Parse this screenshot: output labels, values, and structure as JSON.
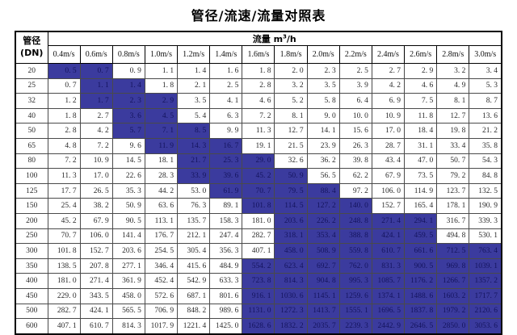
{
  "title": "管径/流速/流量对照表",
  "colors": {
    "highlight_bg": "#3b3b9e",
    "highlight_text": "#14145e",
    "outer_border": "#000000",
    "normal_text": "#2a2a2a"
  },
  "table": {
    "corner_header": {
      "line1": "管径",
      "line2": "(DN)"
    },
    "flow_header": {
      "label": "流量",
      "unit_prefix": "m",
      "unit_sup": "3",
      "unit_suffix": "/h"
    },
    "velocity_headers": [
      "0.4m/s",
      "0.6m/s",
      "0.8m/s",
      "1.0m/s",
      "1.2m/s",
      "1.4m/s",
      "1.6m/s",
      "1.8m/s",
      "2.0m/s",
      "2.2m/s",
      "2.4m/s",
      "2.6m/s",
      "2.8m/s",
      "3.0m/s"
    ],
    "rows": [
      {
        "dn": "20",
        "values": [
          "0. 5",
          "0. 7",
          "0. 9",
          "1. 1",
          "1. 4",
          "1. 6",
          "1. 8",
          "2. 0",
          "2. 3",
          "2. 5",
          "2. 7",
          "2. 9",
          "3. 2",
          "3. 4"
        ],
        "highlight": [
          0,
          1
        ]
      },
      {
        "dn": "25",
        "values": [
          "0. 7",
          "1. 1",
          "1. 4",
          "1. 8",
          "2. 1",
          "2. 5",
          "2. 8",
          "3. 2",
          "3. 5",
          "3. 9",
          "4. 2",
          "4. 6",
          "4. 9",
          "5. 3"
        ],
        "highlight": [
          1,
          2
        ]
      },
      {
        "dn": "32",
        "values": [
          "1. 2",
          "1. 7",
          "2. 3",
          "2. 9",
          "3. 5",
          "4. 1",
          "4. 6",
          "5. 2",
          "5. 8",
          "6. 4",
          "6. 9",
          "7. 5",
          "8. 1",
          "8. 7"
        ],
        "highlight": [
          1,
          2,
          3
        ]
      },
      {
        "dn": "40",
        "values": [
          "1. 8",
          "2. 7",
          "3. 6",
          "4. 5",
          "5. 4",
          "6. 3",
          "7. 2",
          "8. 1",
          "9. 0",
          "10. 0",
          "10. 9",
          "11. 8",
          "12. 7",
          "13. 6"
        ],
        "highlight": [
          2,
          3
        ]
      },
      {
        "dn": "50",
        "values": [
          "2. 8",
          "4. 2",
          "5. 7",
          "7. 1",
          "8. 5",
          "9. 9",
          "11. 3",
          "12. 7",
          "14. 1",
          "15. 6",
          "17. 0",
          "18. 4",
          "19. 8",
          "21. 2"
        ],
        "highlight": [
          2,
          3,
          4
        ]
      },
      {
        "dn": "65",
        "values": [
          "4. 8",
          "7. 2",
          "9. 6",
          "11. 9",
          "14. 3",
          "16. 7",
          "19. 1",
          "21. 5",
          "23. 9",
          "26. 3",
          "28. 7",
          "31. 1",
          "33. 4",
          "35. 8"
        ],
        "highlight": [
          3,
          4,
          5
        ]
      },
      {
        "dn": "80",
        "values": [
          "7. 2",
          "10. 9",
          "14. 5",
          "18. 1",
          "21. 7",
          "25. 3",
          "29. 0",
          "32. 6",
          "36. 2",
          "39. 8",
          "43. 4",
          "47. 0",
          "50. 7",
          "54. 3"
        ],
        "highlight": [
          4,
          5,
          6
        ]
      },
      {
        "dn": "100",
        "values": [
          "11. 3",
          "17. 0",
          "22. 6",
          "28. 3",
          "33. 9",
          "39. 6",
          "45. 2",
          "50. 9",
          "56. 5",
          "62. 2",
          "67. 9",
          "73. 5",
          "79. 2",
          "84. 8"
        ],
        "highlight": [
          4,
          5,
          6,
          7
        ]
      },
      {
        "dn": "125",
        "values": [
          "17. 7",
          "26. 5",
          "35. 3",
          "44. 2",
          "53. 0",
          "61. 9",
          "70. 7",
          "79. 5",
          "88. 4",
          "97. 2",
          "106. 0",
          "114. 9",
          "123. 7",
          "132. 5"
        ],
        "highlight": [
          5,
          6,
          7,
          8
        ]
      },
      {
        "dn": "150",
        "values": [
          "25. 4",
          "38. 2",
          "50. 9",
          "63. 6",
          "76. 3",
          "89. 1",
          "101. 8",
          "114. 5",
          "127. 2",
          "140. 0",
          "152. 7",
          "165. 4",
          "178. 1",
          "190. 9"
        ],
        "highlight": [
          6,
          7,
          8,
          9
        ]
      },
      {
        "dn": "200",
        "values": [
          "45. 2",
          "67. 9",
          "90. 5",
          "113. 1",
          "135. 7",
          "158. 3",
          "181. 0",
          "203. 6",
          "226. 2",
          "248. 8",
          "271. 4",
          "294. 1",
          "316. 7",
          "339. 3"
        ],
        "highlight": [
          7,
          8,
          9,
          10,
          11
        ]
      },
      {
        "dn": "250",
        "values": [
          "70. 7",
          "106. 0",
          "141. 4",
          "176. 7",
          "212. 1",
          "247. 4",
          "282. 7",
          "318. 1",
          "353. 4",
          "388. 8",
          "424. 1",
          "459. 5",
          "494. 8",
          "530. 1"
        ],
        "highlight": [
          7,
          8,
          9,
          10,
          11
        ]
      },
      {
        "dn": "300",
        "values": [
          "101. 8",
          "152. 7",
          "203. 6",
          "254. 5",
          "305. 4",
          "356. 3",
          "407. 1",
          "458. 0",
          "508. 9",
          "559. 8",
          "610. 7",
          "661. 6",
          "712. 5",
          "763. 4"
        ],
        "highlight": [
          7,
          8,
          9,
          10,
          11,
          12,
          13
        ]
      },
      {
        "dn": "350",
        "values": [
          "138. 5",
          "207. 8",
          "277. 1",
          "346. 4",
          "415. 6",
          "484. 9",
          "554. 2",
          "623. 4",
          "692. 7",
          "762. 0",
          "831. 3",
          "900. 5",
          "969. 8",
          "1039. 1"
        ],
        "highlight": [
          6,
          7,
          8,
          9,
          10,
          11,
          12,
          13
        ]
      },
      {
        "dn": "400",
        "values": [
          "181. 0",
          "271. 4",
          "361. 9",
          "452. 4",
          "542. 9",
          "633. 3",
          "723. 8",
          "814. 3",
          "904. 8",
          "995. 3",
          "1085. 7",
          "1176. 2",
          "1266. 7",
          "1357. 2"
        ],
        "highlight": [
          6,
          7,
          8,
          9,
          10,
          11,
          12,
          13
        ]
      },
      {
        "dn": "450",
        "values": [
          "229. 0",
          "343. 5",
          "458. 0",
          "572. 6",
          "687. 1",
          "801. 6",
          "916. 1",
          "1030. 6",
          "1145. 1",
          "1259. 6",
          "1374. 1",
          "1488. 6",
          "1603. 2",
          "1717. 7"
        ],
        "highlight": [
          6,
          7,
          8,
          9,
          10,
          11,
          12,
          13
        ]
      },
      {
        "dn": "500",
        "values": [
          "282. 7",
          "424. 1",
          "565. 5",
          "706. 9",
          "848. 2",
          "989. 6",
          "1131. 0",
          "1272. 3",
          "1413. 7",
          "1555. 1",
          "1696. 5",
          "1837. 8",
          "1979. 2",
          "2120. 6"
        ],
        "highlight": [
          6,
          7,
          8,
          9,
          10,
          11,
          12,
          13
        ]
      },
      {
        "dn": "600",
        "values": [
          "407. 1",
          "610. 7",
          "814. 3",
          "1017. 9",
          "1221. 4",
          "1425. 0",
          "1628. 6",
          "1832. 2",
          "2035. 7",
          "2239. 3",
          "2442. 9",
          "2646. 5",
          "2850. 0",
          "3053. 6"
        ],
        "highlight": [
          6,
          7,
          8,
          9,
          10,
          11,
          12,
          13
        ]
      }
    ]
  }
}
